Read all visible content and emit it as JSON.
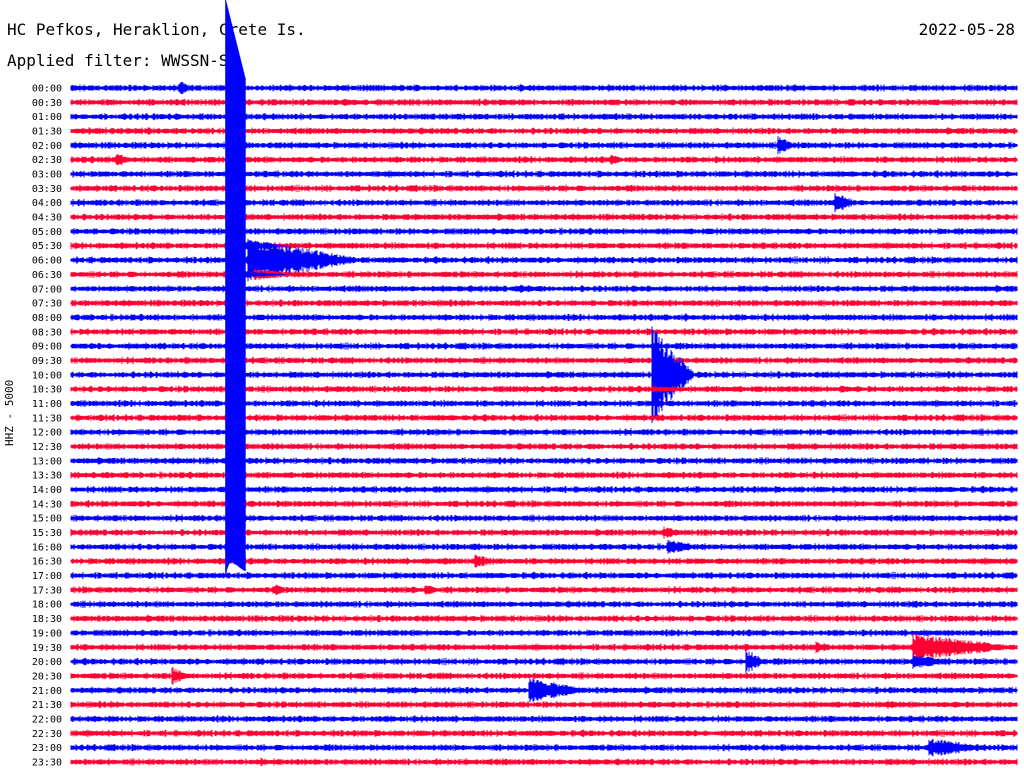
{
  "header": {
    "station": "HC Pefkos, Heraklion, Crete Is.",
    "date": "2022-05-28",
    "filter": "Applied filter: WWSSN-SP",
    "channel": "HHZ - 5000"
  },
  "colors": {
    "blue": "#0000ff",
    "red": "#ff0033",
    "text": "#000000"
  },
  "chart_data": {
    "type": "line",
    "description_type": "helicorder",
    "ylabel": "HHZ - 5000",
    "row_labels": [
      "00:00",
      "00:30",
      "01:00",
      "01:30",
      "02:00",
      "02:30",
      "03:00",
      "03:30",
      "04:00",
      "04:30",
      "05:00",
      "05:30",
      "06:00",
      "06:30",
      "07:00",
      "07:30",
      "08:00",
      "08:30",
      "09:00",
      "09:30",
      "10:00",
      "10:30",
      "11:00",
      "11:30",
      "12:00",
      "12:30",
      "13:00",
      "13:30",
      "14:00",
      "14:30",
      "15:00",
      "15:30",
      "16:00",
      "16:30",
      "17:00",
      "17:30",
      "18:00",
      "18:30",
      "19:00",
      "19:30",
      "20:00",
      "20:30",
      "21:00",
      "21:30",
      "22:00",
      "22:30",
      "23:00",
      "23:30"
    ],
    "row_colors": [
      "blue",
      "red"
    ],
    "x_range_minutes": [
      0,
      30
    ],
    "events": [
      {
        "row": 0,
        "t": 3.4,
        "amp": 1.4,
        "dur": 0.3
      },
      {
        "row": 4,
        "t": 12.4,
        "amp": 0.6,
        "dur": 0.6
      },
      {
        "row": 4,
        "t": 13.5,
        "amp": 0.5,
        "dur": 0.6
      },
      {
        "row": 4,
        "t": 22.4,
        "amp": 1.8,
        "dur": 0.4
      },
      {
        "row": 5,
        "t": 1.4,
        "amp": 1.3,
        "dur": 0.4
      },
      {
        "row": 5,
        "t": 17.1,
        "amp": 1.0,
        "dur": 0.3
      },
      {
        "row": 5,
        "t": 26.4,
        "amp": 0.5,
        "dur": 0.2
      },
      {
        "row": 6,
        "t": 6.3,
        "amp": 0.5,
        "dur": 0.8
      },
      {
        "row": 7,
        "t": 4.4,
        "amp": 0.5,
        "dur": 0.4
      },
      {
        "row": 8,
        "t": 24.2,
        "amp": 1.8,
        "dur": 0.5
      },
      {
        "row": 9,
        "t": 14.8,
        "amp": 0.4,
        "dur": 1.0
      },
      {
        "row": 10,
        "t": 0.5,
        "amp": 0.5,
        "dur": 0.4
      },
      {
        "row": 10,
        "t": 11.3,
        "amp": 0.3,
        "dur": 1.0
      },
      {
        "row": 12,
        "t": 5.6,
        "amp": 4.0,
        "dur": 2.2
      },
      {
        "row": 12,
        "t": 25.9,
        "amp": 0.4,
        "dur": 0.5
      },
      {
        "row": 13,
        "t": 5.8,
        "amp": 1.2,
        "dur": 1.0
      },
      {
        "row": 14,
        "t": 14.2,
        "amp": 0.8,
        "dur": 1.0
      },
      {
        "row": 15,
        "t": 11.6,
        "amp": 0.5,
        "dur": 0.8
      },
      {
        "row": 16,
        "t": 0.5,
        "amp": 0.5,
        "dur": 0.6
      },
      {
        "row": 16,
        "t": 19.5,
        "amp": 0.8,
        "dur": 0.2
      },
      {
        "row": 16,
        "t": 26.9,
        "amp": 0.4,
        "dur": 0.5
      },
      {
        "row": 17,
        "t": 10.1,
        "amp": 0.5,
        "dur": 1.0
      },
      {
        "row": 17,
        "t": 17.0,
        "amp": 0.6,
        "dur": 1.0
      },
      {
        "row": 18,
        "t": 15.5,
        "amp": 0.3,
        "dur": 0.5
      },
      {
        "row": 18,
        "t": 20.8,
        "amp": 0.6,
        "dur": 0.2
      },
      {
        "row": 19,
        "t": 23.5,
        "amp": 0.7,
        "dur": 0.4
      },
      {
        "row": 20,
        "t": 11.9,
        "amp": 0.5,
        "dur": 0.8
      },
      {
        "row": 20,
        "t": 18.4,
        "amp": 9.0,
        "dur": 0.8
      },
      {
        "row": 21,
        "t": 8.3,
        "amp": 0.6,
        "dur": 1.0
      },
      {
        "row": 21,
        "t": 13.6,
        "amp": 0.5,
        "dur": 0.6
      },
      {
        "row": 21,
        "t": 24.4,
        "amp": 0.8,
        "dur": 0.3
      },
      {
        "row": 22,
        "t": 25.1,
        "amp": 0.4,
        "dur": 0.5
      },
      {
        "row": 22,
        "t": 28.9,
        "amp": 0.6,
        "dur": 0.2
      },
      {
        "row": 23,
        "t": 3.4,
        "amp": 0.7,
        "dur": 0.8
      },
      {
        "row": 23,
        "t": 5.2,
        "amp": 0.6,
        "dur": 0.5
      },
      {
        "row": 25,
        "t": 6.2,
        "amp": 0.6,
        "dur": 0.4
      },
      {
        "row": 25,
        "t": 16.6,
        "amp": 0.6,
        "dur": 0.4
      },
      {
        "row": 26,
        "t": 10.2,
        "amp": 0.4,
        "dur": 0.3
      },
      {
        "row": 26,
        "t": 25.9,
        "amp": 0.5,
        "dur": 0.3
      },
      {
        "row": 27,
        "t": 4.1,
        "amp": 0.6,
        "dur": 0.6
      },
      {
        "row": 27,
        "t": 13.7,
        "amp": 0.4,
        "dur": 0.5
      },
      {
        "row": 28,
        "t": 0.1,
        "amp": 0.4,
        "dur": 0.3
      },
      {
        "row": 28,
        "t": 11.5,
        "amp": 0.8,
        "dur": 0.5
      },
      {
        "row": 28,
        "t": 14.2,
        "amp": 0.4,
        "dur": 0.4
      },
      {
        "row": 30,
        "t": 29.4,
        "amp": 0.8,
        "dur": 0.4
      },
      {
        "row": 31,
        "t": 0.1,
        "amp": 0.4,
        "dur": 0.2
      },
      {
        "row": 31,
        "t": 18.8,
        "amp": 1.3,
        "dur": 0.3
      },
      {
        "row": 32,
        "t": 12.7,
        "amp": 0.7,
        "dur": 0.6
      },
      {
        "row": 32,
        "t": 18.9,
        "amp": 1.4,
        "dur": 0.7
      },
      {
        "row": 33,
        "t": 11.8,
        "amp": 0.8,
        "dur": 0.2
      },
      {
        "row": 33,
        "t": 12.8,
        "amp": 1.3,
        "dur": 0.5
      },
      {
        "row": 33,
        "t": 17.8,
        "amp": 0.6,
        "dur": 0.3
      },
      {
        "row": 33,
        "t": 18.4,
        "amp": 0.5,
        "dur": 0.4
      },
      {
        "row": 35,
        "t": 6.4,
        "amp": 1.2,
        "dur": 0.3
      },
      {
        "row": 35,
        "t": 10.8,
        "amp": 0.8,
        "dur": 0.3
      },
      {
        "row": 35,
        "t": 11.2,
        "amp": 1.4,
        "dur": 0.3
      },
      {
        "row": 36,
        "t": 24.1,
        "amp": 0.5,
        "dur": 0.6
      },
      {
        "row": 36,
        "t": 26.7,
        "amp": 0.9,
        "dur": 0.2
      },
      {
        "row": 37,
        "t": 7.3,
        "amp": 0.4,
        "dur": 0.3
      },
      {
        "row": 37,
        "t": 17.7,
        "amp": 0.6,
        "dur": 0.2
      },
      {
        "row": 38,
        "t": 4.0,
        "amp": 0.5,
        "dur": 0.3
      },
      {
        "row": 38,
        "t": 8.1,
        "amp": 0.5,
        "dur": 0.4
      },
      {
        "row": 39,
        "t": 7.3,
        "amp": 0.7,
        "dur": 0.3
      },
      {
        "row": 39,
        "t": 9.6,
        "amp": 0.5,
        "dur": 0.4
      },
      {
        "row": 39,
        "t": 23.6,
        "amp": 1.2,
        "dur": 0.4
      },
      {
        "row": 39,
        "t": 26.7,
        "amp": 2.6,
        "dur": 2.0
      },
      {
        "row": 40,
        "t": 5.4,
        "amp": 0.6,
        "dur": 0.5
      },
      {
        "row": 40,
        "t": 21.4,
        "amp": 2.3,
        "dur": 0.4
      },
      {
        "row": 40,
        "t": 26.7,
        "amp": 1.6,
        "dur": 0.8
      },
      {
        "row": 41,
        "t": 3.2,
        "amp": 1.8,
        "dur": 0.3
      },
      {
        "row": 41,
        "t": 11.6,
        "amp": 0.8,
        "dur": 0.3
      },
      {
        "row": 42,
        "t": 13.6,
        "amp": 0.6,
        "dur": 0.2
      },
      {
        "row": 42,
        "t": 14.5,
        "amp": 2.3,
        "dur": 1.2
      },
      {
        "row": 43,
        "t": 25.9,
        "amp": 0.8,
        "dur": 0.5
      },
      {
        "row": 43,
        "t": 28.0,
        "amp": 0.6,
        "dur": 0.6
      },
      {
        "row": 44,
        "t": 9.5,
        "amp": 0.6,
        "dur": 0.6
      },
      {
        "row": 45,
        "t": 3.4,
        "amp": 0.4,
        "dur": 1.0
      },
      {
        "row": 45,
        "t": 9.5,
        "amp": 0.4,
        "dur": 2.0
      },
      {
        "row": 46,
        "t": 5.1,
        "amp": 0.3,
        "dur": 0.2
      },
      {
        "row": 46,
        "t": 23.1,
        "amp": 0.4,
        "dur": 0.8
      },
      {
        "row": 46,
        "t": 27.2,
        "amp": 1.7,
        "dur": 1.4
      },
      {
        "row": 47,
        "t": 6.0,
        "amp": 0.8,
        "dur": 0.3
      },
      {
        "row": 47,
        "t": 12.5,
        "amp": 0.7,
        "dur": 0.3
      }
    ],
    "main_event": {
      "start_row": 0,
      "end_row": 34,
      "t": 5.0,
      "amp": 30
    }
  }
}
